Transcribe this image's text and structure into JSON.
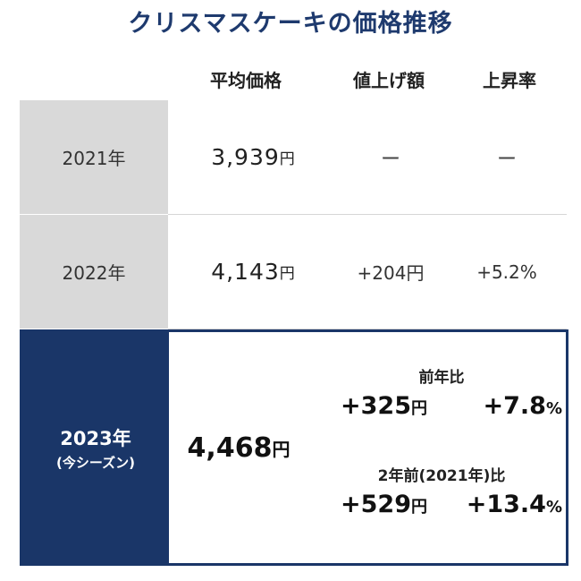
{
  "title": "クリスマスケーキの価格推移",
  "headers": {
    "avg_price": "平均価格",
    "increase": "値上げ額",
    "rate": "上昇率"
  },
  "rows": [
    {
      "year": "2021年",
      "avg_value": "3,939",
      "avg_unit": "円",
      "increase": "ー",
      "rate": "ー"
    },
    {
      "year": "2022年",
      "avg_value": "4,143",
      "avg_unit": "円",
      "increase": "+204円",
      "rate": "+5.2%"
    }
  ],
  "current": {
    "year": "2023年",
    "season": "(今シーズン)",
    "avg_value": "4,468",
    "avg_unit": "円",
    "vs_prev_year": {
      "label": "前年比",
      "increase_value": "+325",
      "increase_unit": "円",
      "rate_value": "+7.8",
      "rate_unit": "%"
    },
    "vs_2021": {
      "label": "2年前(2021年)比",
      "increase_value": "+529",
      "increase_unit": "円",
      "rate_value": "+13.4",
      "rate_unit": "%"
    }
  },
  "colors": {
    "title": "#1e3a6e",
    "highlight": "#1a3668",
    "row_label_bg": "#d9d9d9"
  }
}
